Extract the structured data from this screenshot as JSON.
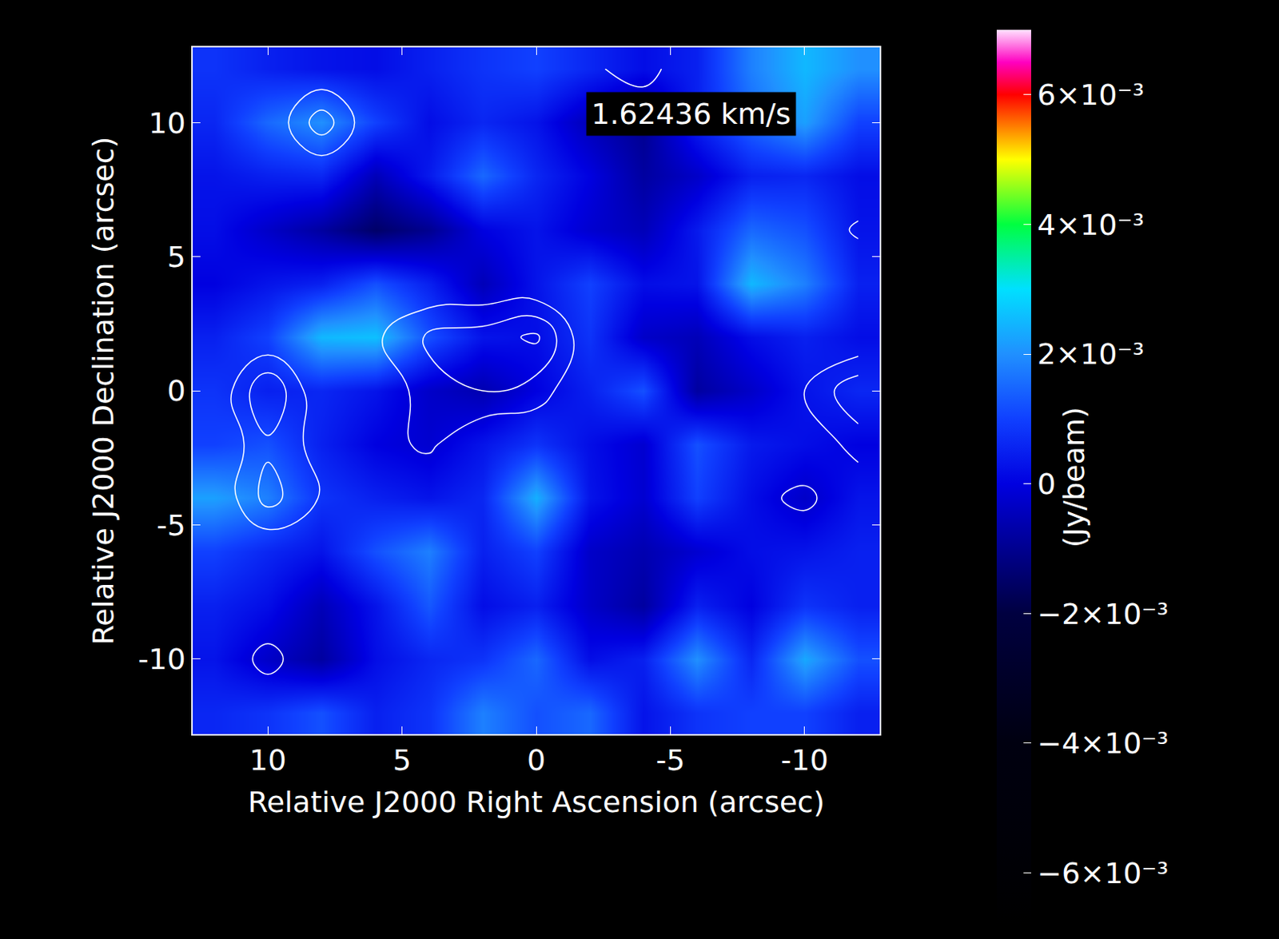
{
  "chart_data": {
    "type": "heatmap",
    "annotation": "1.62436 km/s",
    "xlabel": "Relative J2000 Right Ascension (arcsec)",
    "ylabel": "Relative J2000 Declination (arcsec)",
    "x": [
      12,
      10,
      8,
      6,
      4,
      2,
      0,
      -2,
      -4,
      -6,
      -8,
      -10,
      -12
    ],
    "y": [
      -12,
      -10,
      -8,
      -6,
      -4,
      -2,
      0,
      2,
      4,
      6,
      8,
      10,
      12
    ],
    "cells": [
      [
        0.0006,
        0.0008,
        0.0012,
        0.0005,
        0.0008,
        0.0018,
        0.0012,
        0.0015,
        0.0003,
        0.0008,
        0.001,
        0.001,
        0.0005
      ],
      [
        0.0003,
        -0.0003,
        -0.0008,
        0.0002,
        0.0006,
        0.0008,
        0.0015,
        0.0002,
        0.0005,
        0.002,
        0.0006,
        0.0023,
        0.0012
      ],
      [
        0.0005,
        0.0002,
        -0.0005,
        0.0003,
        0.0013,
        0.0002,
        0.0005,
        -0.0003,
        -0.0008,
        0.0005,
        0.0,
        0.0008,
        0.0005
      ],
      [
        0.001,
        0.0006,
        0.0003,
        0.0012,
        0.0018,
        0.0005,
        0.001,
        -0.0003,
        -0.0006,
        -0.0002,
        0.0002,
        0.0003,
        0.0005
      ],
      [
        0.0022,
        0.0018,
        0.0008,
        0.0005,
        0.0003,
        0.0006,
        0.0024,
        0.0003,
        -0.0002,
        0.001,
        0.0002,
        -0.0003,
        0.0003
      ],
      [
        0.001,
        0.0012,
        0.0005,
        0.0,
        -0.0002,
        0.0003,
        0.0008,
        0.0002,
        -0.0002,
        0.0012,
        0.0004,
        0.0002,
        0.0
      ],
      [
        0.0008,
        0.0005,
        0.0006,
        0.0003,
        -0.0003,
        -0.0006,
        0.0,
        0.0005,
        0.0012,
        -0.0008,
        -0.0003,
        0.0003,
        0.0006
      ],
      [
        0.0005,
        0.001,
        0.0025,
        0.0026,
        0.0012,
        0.0003,
        0.0002,
        0.0008,
        -0.0003,
        -0.0005,
        0.0002,
        0.0005,
        0.0002
      ],
      [
        0.0,
        0.0003,
        0.0005,
        0.0012,
        0.0005,
        -0.0005,
        0.0003,
        0.001,
        0.0002,
        0.0003,
        0.0025,
        0.0018,
        0.0005
      ],
      [
        0.0002,
        -0.0003,
        -0.0008,
        -0.0015,
        -0.001,
        0.0,
        0.0003,
        -0.0002,
        -0.0005,
        0.0004,
        0.0015,
        0.0012,
        0.0003
      ],
      [
        0.0003,
        0.0005,
        0.0006,
        -0.0005,
        0.0004,
        0.0015,
        0.0006,
        0.0,
        -0.0008,
        -0.0003,
        0.0005,
        0.0006,
        0.0002
      ],
      [
        0.0006,
        0.0015,
        0.002,
        0.001,
        0.0002,
        0.0006,
        0.0003,
        -0.0005,
        -0.001,
        0.0005,
        0.0015,
        0.0022,
        0.001
      ],
      [
        0.0008,
        0.0005,
        0.0003,
        0.0002,
        0.0005,
        0.0008,
        0.001,
        0.0006,
        0.0002,
        0.0005,
        0.0018,
        0.0025,
        0.002
      ]
    ],
    "xlim": [
      12.8,
      -12.8
    ],
    "ylim": [
      -12.8,
      12.8
    ],
    "xticks": [
      10,
      5,
      0,
      -5,
      -10
    ],
    "yticks": [
      -10,
      -5,
      0,
      5,
      10
    ],
    "colorbar_label": "(Jy/beam)",
    "color_range": [
      -0.0068,
      0.007
    ],
    "color_ticks": [
      {
        "value": -0.006,
        "label": "−6×10⁻³"
      },
      {
        "value": -0.004,
        "label": "−4×10⁻³"
      },
      {
        "value": -0.002,
        "label": "−2×10⁻³"
      },
      0,
      {
        "value": 0.002,
        "label": "2×10⁻³"
      },
      {
        "value": 0.004,
        "label": "4×10⁻³"
      },
      {
        "value": 0.006,
        "label": "6×10⁻³"
      }
    ],
    "contour_cells": [
      [
        0,
        0,
        0,
        0,
        0,
        0,
        1.0,
        0,
        0,
        0,
        0,
        0,
        0
      ],
      [
        0,
        1.4,
        0,
        0.6,
        0.9,
        0,
        0,
        0,
        0,
        0,
        0,
        0,
        0
      ],
      [
        0,
        0,
        0,
        0,
        0,
        0,
        0,
        0,
        0,
        0,
        0,
        0,
        0
      ],
      [
        0,
        0,
        0,
        0,
        0,
        0,
        0,
        0.6,
        0,
        0,
        0,
        0,
        0
      ],
      [
        0,
        2.4,
        0.9,
        0,
        0,
        0,
        0,
        0,
        0,
        0,
        0.6,
        1.3,
        0
      ],
      [
        0,
        1.8,
        0.6,
        0.6,
        1.2,
        0,
        0,
        0,
        0,
        0,
        0,
        0,
        1.5
      ],
      [
        0,
        3.0,
        0,
        0,
        1.6,
        2.0,
        1.5,
        0,
        0,
        0,
        0,
        1.0,
        2.8
      ],
      [
        0,
        0,
        0,
        0.8,
        2.2,
        2.5,
        3.2,
        0,
        0,
        0,
        0,
        0,
        0
      ],
      [
        0,
        0,
        0,
        0,
        0,
        0,
        0,
        0,
        0,
        0.7,
        0,
        0,
        0
      ],
      [
        0,
        0,
        0,
        0,
        0,
        0,
        0,
        0,
        0,
        0.9,
        0,
        0,
        1.2
      ],
      [
        0,
        0,
        0,
        0,
        0,
        0,
        0,
        0,
        0,
        0,
        0,
        0,
        0
      ],
      [
        0,
        0,
        2.6,
        0,
        0,
        0,
        0,
        0,
        0,
        0,
        0,
        0,
        0.5
      ],
      [
        0,
        0,
        0,
        0,
        0,
        0,
        0,
        0.8,
        1.5,
        0,
        0,
        0,
        0
      ]
    ],
    "contour_levels": [
      1,
      2,
      3
    ]
  }
}
